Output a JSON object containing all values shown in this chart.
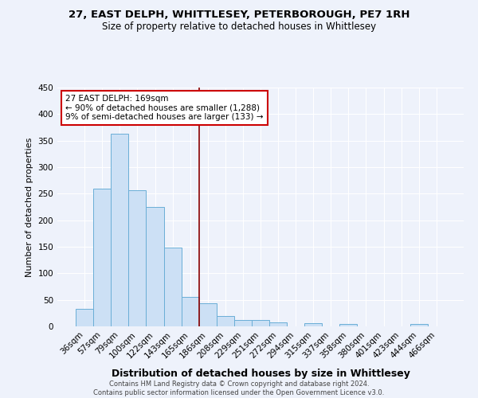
{
  "title_line1": "27, EAST DELPH, WHITTLESEY, PETERBOROUGH, PE7 1RH",
  "title_line2": "Size of property relative to detached houses in Whittlesey",
  "xlabel": "Distribution of detached houses by size in Whittlesey",
  "ylabel": "Number of detached properties",
  "footnote": "Contains HM Land Registry data © Crown copyright and database right 2024.\nContains public sector information licensed under the Open Government Licence v3.0.",
  "categories": [
    "36sqm",
    "57sqm",
    "79sqm",
    "100sqm",
    "122sqm",
    "143sqm",
    "165sqm",
    "186sqm",
    "208sqm",
    "229sqm",
    "251sqm",
    "272sqm",
    "294sqm",
    "315sqm",
    "337sqm",
    "358sqm",
    "380sqm",
    "401sqm",
    "423sqm",
    "444sqm",
    "466sqm"
  ],
  "values": [
    33,
    260,
    363,
    257,
    225,
    149,
    55,
    44,
    19,
    12,
    12,
    7,
    0,
    6,
    0,
    4,
    0,
    0,
    0,
    4,
    0
  ],
  "bar_color": "#cce0f5",
  "bar_edge_color": "#6aaed6",
  "vline_color": "#8b0000",
  "vline_x_index": 6,
  "annotation_title": "27 EAST DELPH: 169sqm",
  "annotation_line1": "← 90% of detached houses are smaller (1,288)",
  "annotation_line2": "9% of semi-detached houses are larger (133) →",
  "annotation_box_color": "#ffffff",
  "annotation_box_edge": "#cc0000",
  "ylim": [
    0,
    450
  ],
  "yticks": [
    0,
    50,
    100,
    150,
    200,
    250,
    300,
    350,
    400,
    450
  ],
  "background_color": "#eef2fb",
  "title1_fontsize": 9.5,
  "title2_fontsize": 8.5,
  "xlabel_fontsize": 9,
  "ylabel_fontsize": 8,
  "tick_fontsize": 7.5,
  "footnote_fontsize": 6,
  "annotation_fontsize": 7.5
}
